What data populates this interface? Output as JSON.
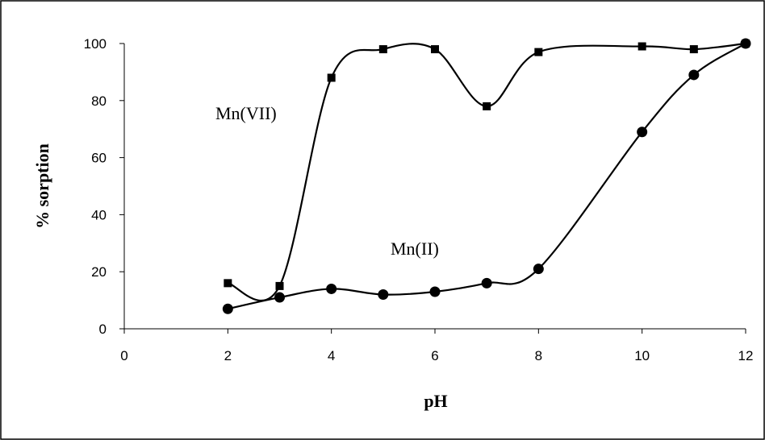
{
  "chart_data": {
    "type": "line",
    "xlabel": "pH",
    "ylabel": "% sorption",
    "xlim": [
      0,
      12
    ],
    "ylim": [
      0,
      100
    ],
    "x_ticks": [
      0,
      2,
      4,
      6,
      8,
      10,
      12
    ],
    "y_ticks": [
      0,
      20,
      40,
      60,
      80,
      100
    ],
    "grid": false,
    "series": [
      {
        "name": "Mn(VII)",
        "marker": "square",
        "x": [
          2,
          3,
          4,
          5,
          6,
          7,
          8,
          10,
          11,
          12
        ],
        "y": [
          16,
          15,
          88,
          98,
          98,
          78,
          97,
          99,
          98,
          100
        ]
      },
      {
        "name": "Mn(II)",
        "marker": "circle",
        "x": [
          2,
          3,
          4,
          5,
          6,
          7,
          8,
          10,
          11,
          12
        ],
        "y": [
          7,
          11,
          14,
          12,
          13,
          16,
          21,
          69,
          89,
          100
        ]
      }
    ]
  },
  "colors": {
    "line": "#000000",
    "background": "#ffffff"
  }
}
